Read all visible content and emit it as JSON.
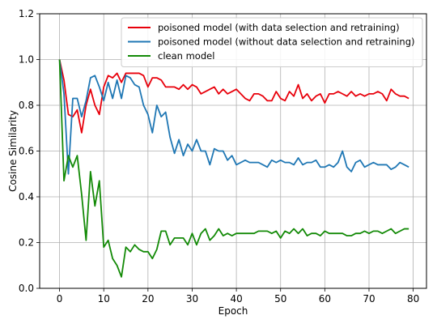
{
  "chart_data": {
    "type": "line",
    "title": "",
    "xlabel": "Epoch",
    "ylabel": "Cosine Similarity",
    "xlim": [
      -4.5,
      83
    ],
    "ylim": [
      0.0,
      1.2
    ],
    "xticks": [
      0,
      10,
      20,
      30,
      40,
      50,
      60,
      70,
      80
    ],
    "yticks": [
      0.0,
      0.2,
      0.4,
      0.6,
      0.8,
      1.0,
      1.2
    ],
    "xtick_labels": [
      "0",
      "10",
      "20",
      "30",
      "40",
      "50",
      "60",
      "70",
      "80"
    ],
    "ytick_labels": [
      "0.0",
      "0.2",
      "0.4",
      "0.6",
      "0.8",
      "1.0",
      "1.2"
    ],
    "grid": true,
    "legend_position": "top-right",
    "series": [
      {
        "name": "poisoned model (with data selection and retraining)",
        "color": "#e8000b",
        "values": [
          1.0,
          0.91,
          0.76,
          0.75,
          0.78,
          0.68,
          0.8,
          0.87,
          0.8,
          0.76,
          0.88,
          0.93,
          0.92,
          0.94,
          0.9,
          0.94,
          0.94,
          0.94,
          0.94,
          0.93,
          0.88,
          0.92,
          0.92,
          0.91,
          0.88,
          0.88,
          0.88,
          0.87,
          0.89,
          0.87,
          0.89,
          0.88,
          0.85,
          0.86,
          0.87,
          0.88,
          0.85,
          0.87,
          0.85,
          0.86,
          0.87,
          0.85,
          0.83,
          0.82,
          0.85,
          0.85,
          0.84,
          0.82,
          0.82,
          0.86,
          0.83,
          0.82,
          0.86,
          0.84,
          0.89,
          0.83,
          0.85,
          0.82,
          0.84,
          0.85,
          0.81,
          0.85,
          0.85,
          0.86,
          0.85,
          0.84,
          0.86,
          0.84,
          0.85,
          0.84,
          0.85,
          0.85,
          0.86,
          0.85,
          0.82,
          0.87,
          0.85,
          0.84,
          0.84,
          0.83
        ]
      },
      {
        "name": "poisoned model (without data selection and retraining)",
        "color": "#1f77b4",
        "values": [
          1.0,
          0.85,
          0.5,
          0.83,
          0.83,
          0.75,
          0.82,
          0.92,
          0.93,
          0.88,
          0.82,
          0.9,
          0.83,
          0.91,
          0.83,
          0.93,
          0.92,
          0.89,
          0.88,
          0.8,
          0.76,
          0.68,
          0.8,
          0.75,
          0.77,
          0.66,
          0.59,
          0.65,
          0.58,
          0.63,
          0.6,
          0.65,
          0.6,
          0.6,
          0.54,
          0.61,
          0.6,
          0.6,
          0.56,
          0.58,
          0.54,
          0.55,
          0.56,
          0.55,
          0.55,
          0.55,
          0.54,
          0.53,
          0.56,
          0.55,
          0.56,
          0.55,
          0.55,
          0.54,
          0.57,
          0.54,
          0.55,
          0.55,
          0.56,
          0.53,
          0.53,
          0.54,
          0.53,
          0.55,
          0.6,
          0.53,
          0.51,
          0.55,
          0.56,
          0.53,
          0.54,
          0.55,
          0.54,
          0.54,
          0.54,
          0.52,
          0.53,
          0.55,
          0.54,
          0.53
        ]
      },
      {
        "name": "clean model",
        "color": "#138a07",
        "values": [
          1.0,
          0.47,
          0.58,
          0.53,
          0.58,
          0.41,
          0.21,
          0.51,
          0.36,
          0.47,
          0.18,
          0.21,
          0.13,
          0.1,
          0.05,
          0.18,
          0.16,
          0.19,
          0.17,
          0.16,
          0.16,
          0.13,
          0.17,
          0.25,
          0.25,
          0.19,
          0.22,
          0.22,
          0.22,
          0.19,
          0.24,
          0.19,
          0.24,
          0.26,
          0.21,
          0.23,
          0.26,
          0.23,
          0.24,
          0.23,
          0.24,
          0.24,
          0.24,
          0.24,
          0.24,
          0.25,
          0.25,
          0.25,
          0.24,
          0.25,
          0.22,
          0.25,
          0.24,
          0.26,
          0.24,
          0.26,
          0.23,
          0.24,
          0.24,
          0.23,
          0.25,
          0.24,
          0.24,
          0.24,
          0.24,
          0.23,
          0.23,
          0.24,
          0.24,
          0.25,
          0.24,
          0.25,
          0.25,
          0.24,
          0.25,
          0.26,
          0.24,
          0.25,
          0.26,
          0.26
        ]
      }
    ]
  }
}
